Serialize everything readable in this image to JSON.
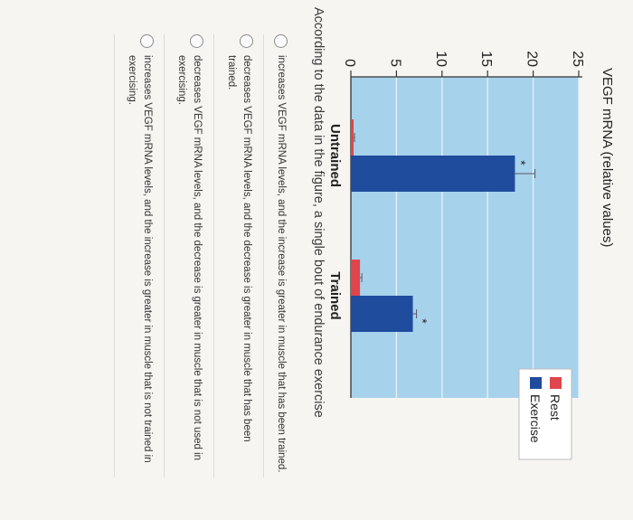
{
  "chart_data": {
    "type": "bar",
    "ylabel": "VEGF mRNA (relative values)",
    "ylim": [
      0,
      25
    ],
    "yticks": [
      0,
      5,
      10,
      15,
      20,
      25
    ],
    "categories": [
      "Untrained",
      "Trained"
    ],
    "legend": [
      "Rest",
      "Exercise"
    ],
    "legend_position": "top-right",
    "series": [
      {
        "name": "Rest",
        "color": "#e0454b",
        "values": [
          0.3,
          1.0
        ],
        "errors": [
          0.1,
          0.2
        ]
      },
      {
        "name": "Exercise",
        "color": "#1f4c9d",
        "values": [
          18.0,
          6.8
        ],
        "errors": [
          2.2,
          0.4
        ]
      }
    ],
    "annotations": [
      {
        "text": "*",
        "category": 0,
        "series": "Exercise"
      },
      {
        "text": "*",
        "category": 1,
        "series": "Exercise"
      }
    ],
    "colors": {
      "background": "#a7d2ec",
      "grid": "#e4f2fb"
    }
  },
  "question": {
    "prompt": "According to the data in the figure, a single bout of endurance exercise",
    "options": [
      "increases VEGF mRNA levels, and the increase is greater in muscle that has been trained.",
      "decreases VEGF mRNA levels, and the decrease is greater in muscle that has been trained.",
      "decreases VEGF mRNA levels, and the decrease is greater in muscle that is not used in exercising.",
      "increases VEGF mRNA levels, and the increase is greater in muscle that is not trained in exercising."
    ]
  }
}
